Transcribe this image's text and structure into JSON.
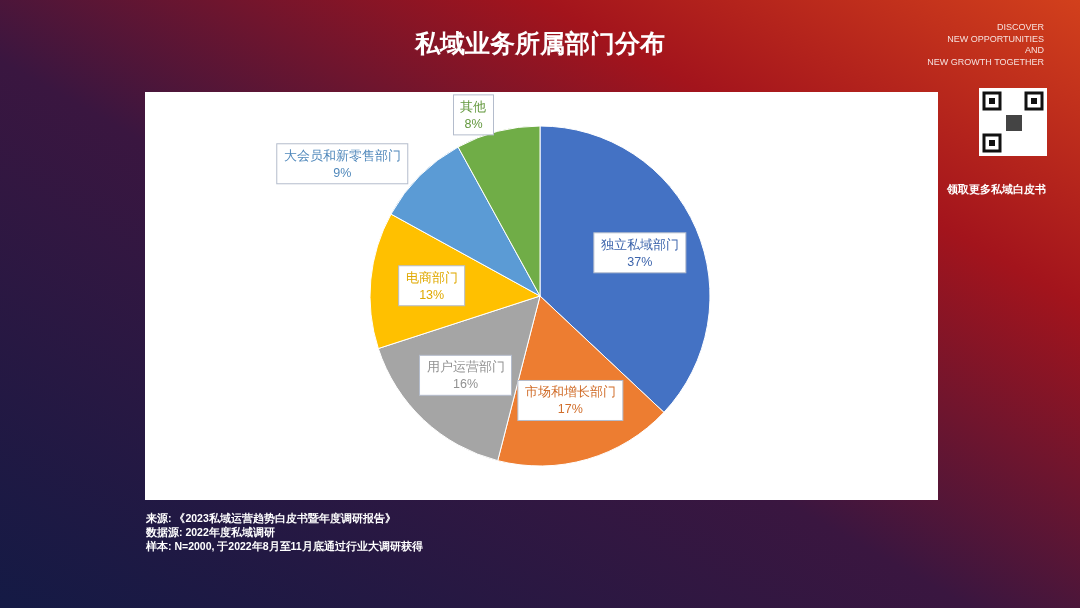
{
  "chart_data": {
    "type": "pie",
    "title": "私域业务所属部门分布",
    "categories": [
      "独立私域部门",
      "市场和增长部门",
      "用户运营部门",
      "电商部门",
      "大会员和新零售部门",
      "其他"
    ],
    "values": [
      37,
      17,
      16,
      13,
      9,
      8
    ],
    "colors": [
      "#4472c4",
      "#ed7d31",
      "#a5a5a5",
      "#ffc000",
      "#5b9bd5",
      "#70ad47"
    ],
    "value_labels": [
      "37%",
      "17%",
      "16%",
      "13%",
      "9%",
      "8%"
    ],
    "annotations": [
      "DISCOVER\nNEW OPPORTUNITIES\nAND\nNEW GROWTH TOGETHER",
      "领取更多私域白皮书",
      "来源: 《2023私域运营趋势白皮书暨年度调研报告》",
      "数据源: 2022年度私域调研",
      "样本: N=2000, 于2022年8月至11月底通过行业大调研获得"
    ]
  }
}
